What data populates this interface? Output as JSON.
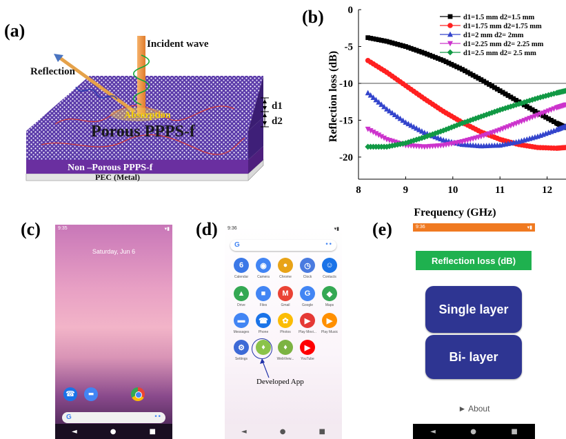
{
  "panel_a": {
    "label": "(a)",
    "incident": "Incident wave",
    "reflection": "Reflection",
    "absorption": "Absorption",
    "porous": "Porous PPPS-f",
    "nonporous": "Non –Porous PPPS-f",
    "pec": "PEC (Metal)",
    "d1": "d1",
    "d2": "d2"
  },
  "panel_b": {
    "label": "(b)"
  },
  "chart_data": {
    "type": "scatter",
    "xlabel": "Frequency (GHz)",
    "ylabel": "Reflection loss (dB)",
    "xlim": [
      8,
      12.4
    ],
    "ylim": [
      -23,
      0
    ],
    "xticks": [
      "8",
      "9",
      "10",
      "11",
      "12"
    ],
    "yticks": [
      "0",
      "-5",
      "-10",
      "-15",
      "-20"
    ],
    "reference_line_y": -10,
    "legend_position": "top-right",
    "series": [
      {
        "name": "d1=1.5 mm d2=1.5 mm",
        "color": "#000000",
        "marker": "square",
        "x": [
          8.2,
          8.6,
          9.0,
          9.4,
          9.8,
          10.2,
          10.6,
          11.0,
          11.4,
          11.8,
          12.2,
          12.4
        ],
        "y": [
          -3.8,
          -4.3,
          -5.0,
          -5.9,
          -6.9,
          -8.1,
          -9.5,
          -11.0,
          -12.5,
          -14.0,
          -15.4,
          -16.0
        ]
      },
      {
        "name": "d1=1.75 mm d2=1.75 mm",
        "color": "#ff2020",
        "marker": "circle",
        "x": [
          8.2,
          8.6,
          9.0,
          9.4,
          9.8,
          10.2,
          10.6,
          11.0,
          11.4,
          11.8,
          12.2,
          12.4
        ],
        "y": [
          -6.9,
          -8.5,
          -10.3,
          -12.1,
          -13.8,
          -15.3,
          -16.6,
          -17.6,
          -18.3,
          -18.7,
          -18.8,
          -18.7
        ]
      },
      {
        "name": "d1=2 mm d2= 2mm",
        "color": "#3344cc",
        "marker": "triangle-up",
        "x": [
          8.2,
          8.6,
          9.0,
          9.4,
          9.8,
          10.2,
          10.6,
          11.0,
          11.4,
          11.8,
          12.2,
          12.4
        ],
        "y": [
          -11.3,
          -13.5,
          -15.3,
          -16.7,
          -17.7,
          -18.3,
          -18.5,
          -18.4,
          -17.9,
          -17.2,
          -16.3,
          -15.8
        ]
      },
      {
        "name": "d1=2.25 mm d2= 2.25 mm",
        "color": "#cc33cc",
        "marker": "triangle-down",
        "x": [
          8.2,
          8.6,
          9.0,
          9.4,
          9.8,
          10.2,
          10.6,
          11.0,
          11.4,
          11.8,
          12.2,
          12.4
        ],
        "y": [
          -16.2,
          -17.6,
          -18.4,
          -18.6,
          -18.4,
          -17.9,
          -17.2,
          -16.3,
          -15.3,
          -14.3,
          -13.3,
          -12.9
        ]
      },
      {
        "name": "d1=2.5 mm d2= 2.5 mm",
        "color": "#119944",
        "marker": "diamond",
        "x": [
          8.2,
          8.6,
          9.0,
          9.4,
          9.8,
          10.2,
          10.6,
          11.0,
          11.4,
          11.8,
          12.2,
          12.4
        ],
        "y": [
          -18.6,
          -18.6,
          -18.1,
          -17.3,
          -16.4,
          -15.4,
          -14.5,
          -13.6,
          -12.8,
          -12.0,
          -11.3,
          -11.0
        ]
      }
    ]
  },
  "panel_c": {
    "label": "(c)",
    "time": "9:35",
    "date": "Saturday, Jun 6",
    "search_glyph": "G"
  },
  "panel_d": {
    "label": "(d)",
    "time": "9:36",
    "search_glyph": "G",
    "callout": "Developed App",
    "apps": [
      {
        "name": "Calendar",
        "glyph": "6",
        "color": "#3b78e7"
      },
      {
        "name": "Camera",
        "glyph": "◉",
        "color": "#4285f4"
      },
      {
        "name": "Chrome",
        "glyph": "●",
        "color": "#e8a317"
      },
      {
        "name": "Clock",
        "glyph": "◷",
        "color": "#4a7be0"
      },
      {
        "name": "Contacts",
        "glyph": "☺",
        "color": "#1a73e8"
      },
      {
        "name": "Drive",
        "glyph": "▲",
        "color": "#34a853"
      },
      {
        "name": "Files",
        "glyph": "■",
        "color": "#4285f4"
      },
      {
        "name": "Gmail",
        "glyph": "M",
        "color": "#ea4335"
      },
      {
        "name": "Google",
        "glyph": "G",
        "color": "#4285f4"
      },
      {
        "name": "Maps",
        "glyph": "◆",
        "color": "#34a853"
      },
      {
        "name": "Messages",
        "glyph": "▬",
        "color": "#4285f4"
      },
      {
        "name": "Phone",
        "glyph": "☎",
        "color": "#1a73e8"
      },
      {
        "name": "Photos",
        "glyph": "✿",
        "color": "#fbbc05"
      },
      {
        "name": "Play Movi...",
        "glyph": "▶",
        "color": "#e53935"
      },
      {
        "name": "Play Music",
        "glyph": "▶",
        "color": "#ff8f00"
      },
      {
        "name": "Settings",
        "glyph": "⚙",
        "color": "#3d6ad6"
      },
      {
        "name": "",
        "glyph": "♦",
        "color": "#8bc34a"
      },
      {
        "name": "WebView...",
        "glyph": "♦",
        "color": "#7cb342"
      },
      {
        "name": "YouTube",
        "glyph": "▶",
        "color": "#ff0000"
      }
    ]
  },
  "panel_e": {
    "label": "(e)",
    "time": "9:36",
    "title_button": "Reflection loss (dB)",
    "single_button": "Single layer",
    "bi_button": "Bi- layer",
    "about": "► About"
  },
  "nav": {
    "back": "◄",
    "home": "●",
    "recent": "■"
  }
}
